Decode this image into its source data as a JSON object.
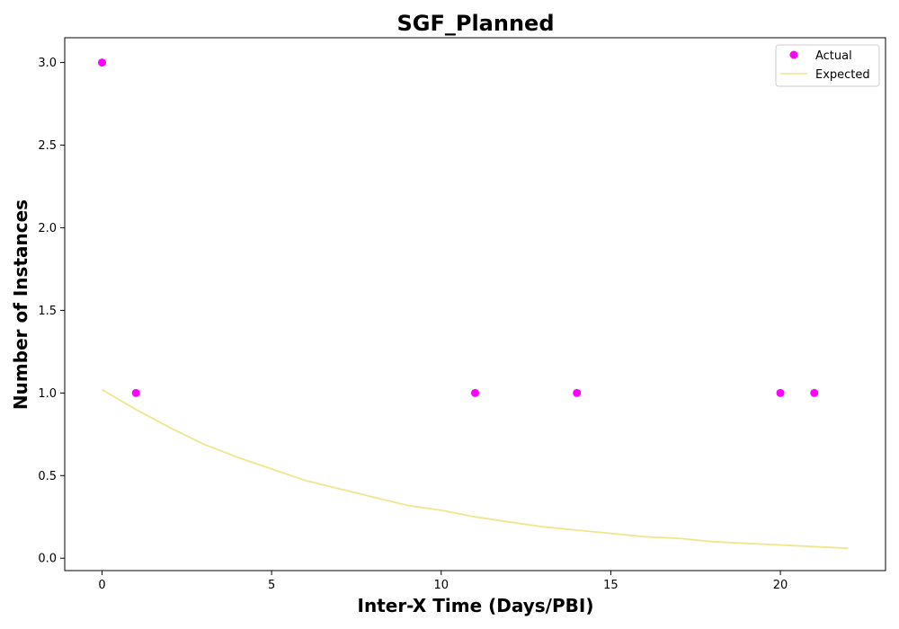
{
  "chart_data": {
    "type": "scatter",
    "title": "SGF_Planned",
    "xlabel": "Inter-X Time (Days/PBI)",
    "ylabel": "Number of Instances",
    "xlim": [
      -1.1,
      23.1
    ],
    "ylim": [
      -0.075,
      3.15
    ],
    "x_ticks": [
      0,
      5,
      10,
      15,
      20
    ],
    "x_tick_labels": [
      "0",
      "5",
      "10",
      "15",
      "20"
    ],
    "y_ticks": [
      0.0,
      0.5,
      1.0,
      1.5,
      2.0,
      2.5,
      3.0
    ],
    "y_tick_labels": [
      "0.0",
      "0.5",
      "1.0",
      "1.5",
      "2.0",
      "2.5",
      "3.0"
    ],
    "grid": false,
    "legend_position": "upper-right",
    "series": [
      {
        "name": "Actual",
        "kind": "scatter",
        "color": "#ff00ff",
        "points": [
          {
            "x": 0,
            "y": 3
          },
          {
            "x": 1,
            "y": 1
          },
          {
            "x": 11,
            "y": 1
          },
          {
            "x": 14,
            "y": 1
          },
          {
            "x": 20,
            "y": 1
          },
          {
            "x": 21,
            "y": 1
          }
        ]
      },
      {
        "name": "Expected",
        "kind": "line",
        "color": "#f0e68c",
        "points": [
          {
            "x": 0,
            "y": 1.02
          },
          {
            "x": 1,
            "y": 0.9
          },
          {
            "x": 2,
            "y": 0.79
          },
          {
            "x": 3,
            "y": 0.69
          },
          {
            "x": 4,
            "y": 0.61
          },
          {
            "x": 5,
            "y": 0.54
          },
          {
            "x": 6,
            "y": 0.47
          },
          {
            "x": 7,
            "y": 0.42
          },
          {
            "x": 8,
            "y": 0.37
          },
          {
            "x": 9,
            "y": 0.32
          },
          {
            "x": 10,
            "y": 0.29
          },
          {
            "x": 11,
            "y": 0.25
          },
          {
            "x": 12,
            "y": 0.22
          },
          {
            "x": 13,
            "y": 0.19
          },
          {
            "x": 14,
            "y": 0.17
          },
          {
            "x": 15,
            "y": 0.15
          },
          {
            "x": 16,
            "y": 0.13
          },
          {
            "x": 17,
            "y": 0.12
          },
          {
            "x": 18,
            "y": 0.1
          },
          {
            "x": 19,
            "y": 0.09
          },
          {
            "x": 20,
            "y": 0.08
          },
          {
            "x": 21,
            "y": 0.07
          },
          {
            "x": 22,
            "y": 0.06
          }
        ]
      }
    ]
  }
}
